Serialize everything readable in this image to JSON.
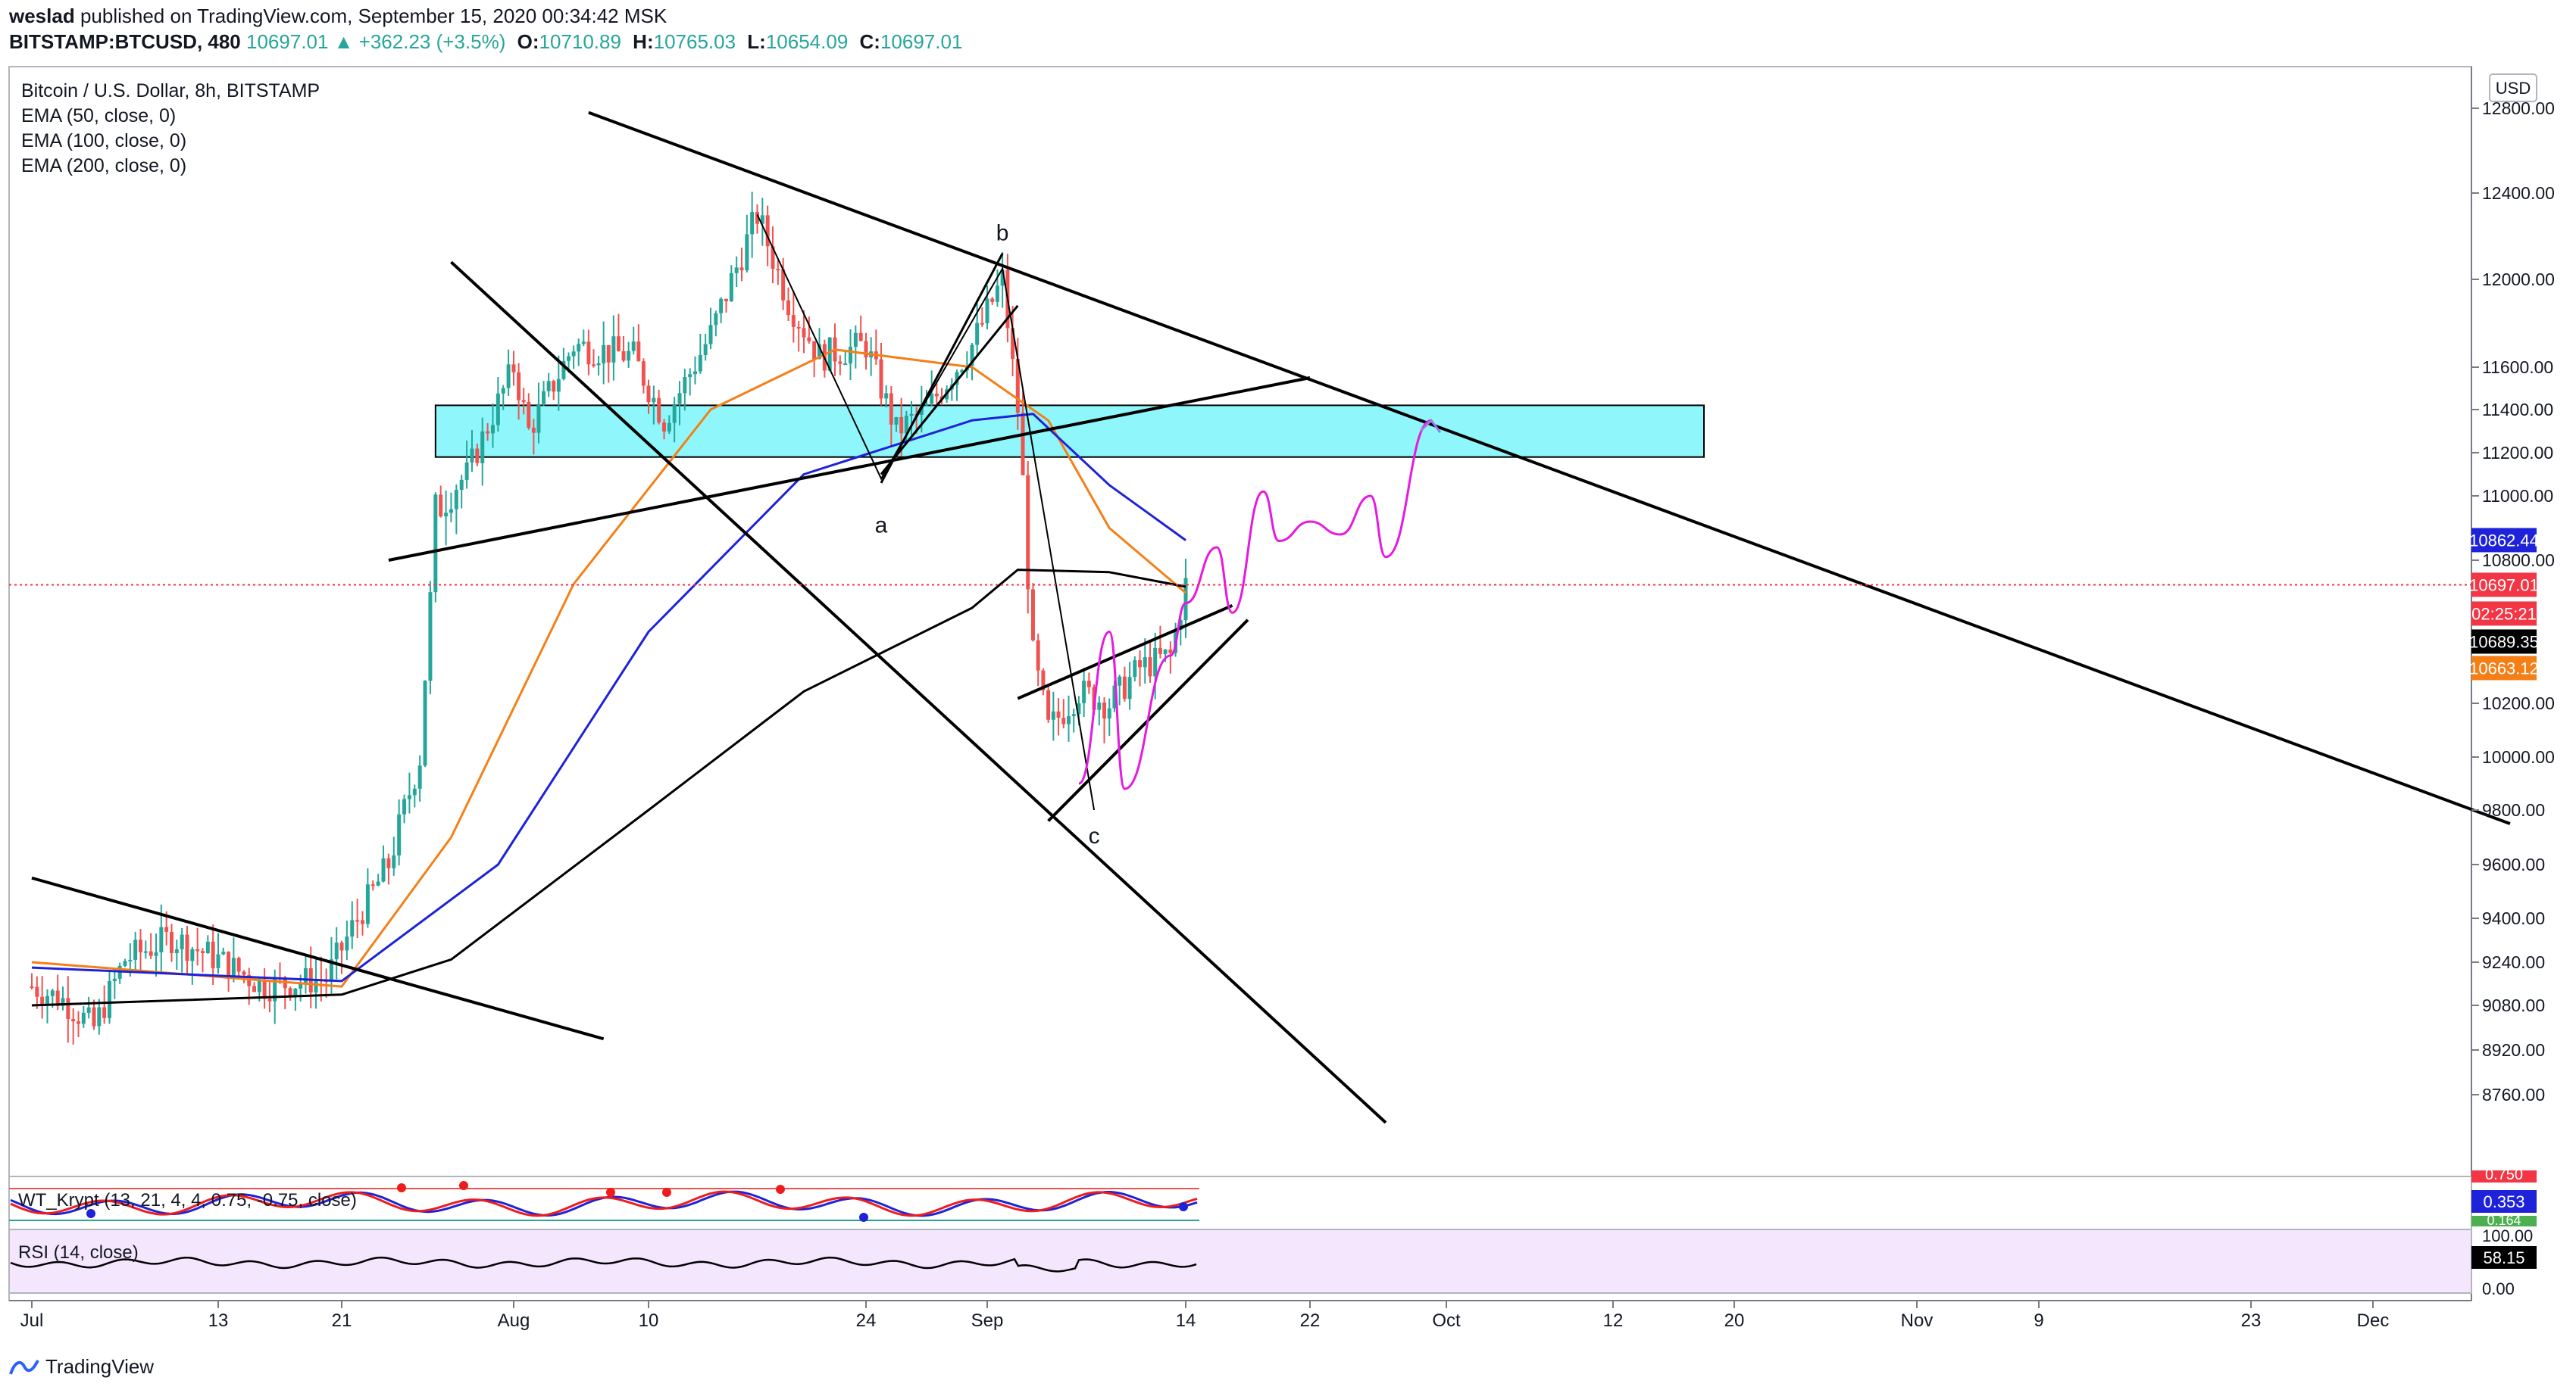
{
  "header": {
    "publisher": "weslad",
    "published_text": "published on TradingView.com, September 15, 2020 00:34:42 MSK",
    "symbol": "BITSTAMP:BTCUSD, 480",
    "last": "10697.01",
    "change": "▲ +362.23 (+3.5%)",
    "open_label": "O:",
    "open": "10710.89",
    "high_label": "H:",
    "high": "10765.03",
    "low_label": "L:",
    "low": "10654.09",
    "close_label": "C:",
    "close": "10697.01"
  },
  "legend": {
    "title": "Bitcoin / U.S. Dollar, 8h, BITSTAMP",
    "ema50": "EMA (50, close, 0)",
    "ema100": "EMA (100, close, 0)",
    "ema200": "EMA (200, close, 0)"
  },
  "currency_badge": "USD",
  "annotations": {
    "a": "a",
    "b": "b",
    "c": "c"
  },
  "price_labels": {
    "ema100": "10862.44",
    "last": "10697.01",
    "countdown": "02:25:21",
    "ema200": "10689.35",
    "ema50": "10663.12"
  },
  "indicators": {
    "wt_title": "WT_Krypt (13, 21, 4, 4, 0.75, -0.75, close)",
    "wt_value": "0.353",
    "wt_top_cut": "0.750",
    "wt_bottom_cut": "0.164",
    "rsi_title": "RSI (14, close)",
    "rsi_value": "58.15",
    "rsi_top": "100.00",
    "rsi_bottom": "0.00"
  },
  "colors": {
    "up": "#26a69a",
    "down": "#ef5350",
    "ema50": "#f57f17",
    "ema100": "#1e22d8",
    "ema200": "#000000",
    "zone": "#8ff7fb",
    "projection": "#e619e0",
    "projection_arrow": "#9b7be8",
    "last_price_line": "#f23645"
  },
  "footer": {
    "brand": "TradingView"
  },
  "chart_data": {
    "type": "line",
    "title": "Bitcoin / U.S. Dollar, 8h, BITSTAMP",
    "ylim": [
      8600,
      12850
    ],
    "y_ticks": [
      "12800.00",
      "12400.00",
      "12000.00",
      "11600.00",
      "11400.00",
      "11200.00",
      "11000.00",
      "10800.00",
      "10200.00",
      "10000.00",
      "9800.00",
      "9600.00",
      "9400.00",
      "9240.00",
      "9080.00",
      "8920.00",
      "8760.00"
    ],
    "x_ticks": [
      "Jul",
      "13",
      "21",
      "Aug",
      "10",
      "24",
      "Sep",
      "14",
      "22",
      "Oct",
      "12",
      "20",
      "Nov",
      "9",
      "23",
      "Dec"
    ],
    "price_path": [
      {
        "date": "Jul 1",
        "price": 9150
      },
      {
        "date": "Jul 3",
        "price": 9100
      },
      {
        "date": "Jul 5",
        "price": 9000
      },
      {
        "date": "Jul 7",
        "price": 9250
      },
      {
        "date": "Jul 10",
        "price": 9330
      },
      {
        "date": "Jul 13",
        "price": 9250
      },
      {
        "date": "Jul 16",
        "price": 9150
      },
      {
        "date": "Jul 20",
        "price": 9180
      },
      {
        "date": "Jul 22",
        "price": 9400
      },
      {
        "date": "Jul 24",
        "price": 9600
      },
      {
        "date": "Jul 26",
        "price": 10000
      },
      {
        "date": "Jul 27",
        "price": 10950
      },
      {
        "date": "Jul 29",
        "price": 11100
      },
      {
        "date": "Aug 1",
        "price": 11600
      },
      {
        "date": "Aug 2",
        "price": 11300
      },
      {
        "date": "Aug 5",
        "price": 11700
      },
      {
        "date": "Aug 9",
        "price": 11650
      },
      {
        "date": "Aug 11",
        "price": 11350
      },
      {
        "date": "Aug 14",
        "price": 11750
      },
      {
        "date": "Aug 17",
        "price": 12300
      },
      {
        "date": "Aug 19",
        "price": 11900
      },
      {
        "date": "Aug 21",
        "price": 11650
      },
      {
        "date": "Aug 24",
        "price": 11700
      },
      {
        "date": "Aug 26",
        "price": 11300
      },
      {
        "date": "Aug 28",
        "price": 11400
      },
      {
        "date": "Aug 31",
        "price": 11700
      },
      {
        "date": "Sep 2",
        "price": 12000
      },
      {
        "date": "Sep 3",
        "price": 11400
      },
      {
        "date": "Sep 4",
        "price": 10400
      },
      {
        "date": "Sep 5",
        "price": 10100
      },
      {
        "date": "Sep 7",
        "price": 10250
      },
      {
        "date": "Sep 9",
        "price": 10200
      },
      {
        "date": "Sep 11",
        "price": 10350
      },
      {
        "date": "Sep 13",
        "price": 10400
      },
      {
        "date": "Sep 14",
        "price": 10697
      }
    ],
    "series": [
      {
        "name": "EMA (50, close, 0)",
        "values": [
          {
            "date": "Jul 1",
            "y": 9240
          },
          {
            "date": "Jul 21",
            "y": 9150
          },
          {
            "date": "Jul 28",
            "y": 9700
          },
          {
            "date": "Aug 5",
            "y": 10700
          },
          {
            "date": "Aug 14",
            "y": 11400
          },
          {
            "date": "Aug 22",
            "y": 11680
          },
          {
            "date": "Aug 31",
            "y": 11600
          },
          {
            "date": "Sep 5",
            "y": 11350
          },
          {
            "date": "Sep 9",
            "y": 10900
          },
          {
            "date": "Sep 14",
            "y": 10663
          }
        ]
      },
      {
        "name": "EMA (100, close, 0)",
        "values": [
          {
            "date": "Jul 1",
            "y": 9220
          },
          {
            "date": "Jul 21",
            "y": 9170
          },
          {
            "date": "Jul 31",
            "y": 9600
          },
          {
            "date": "Aug 10",
            "y": 10500
          },
          {
            "date": "Aug 20",
            "y": 11100
          },
          {
            "date": "Aug 31",
            "y": 11350
          },
          {
            "date": "Sep 4",
            "y": 11380
          },
          {
            "date": "Sep 9",
            "y": 11050
          },
          {
            "date": "Sep 14",
            "y": 10862
          }
        ]
      },
      {
        "name": "EMA (200, close, 0)",
        "values": [
          {
            "date": "Jul 1",
            "y": 9080
          },
          {
            "date": "Jul 21",
            "y": 9120
          },
          {
            "date": "Jul 28",
            "y": 9250
          },
          {
            "date": "Aug 10",
            "y": 9800
          },
          {
            "date": "Aug 20",
            "y": 10250
          },
          {
            "date": "Aug 31",
            "y": 10600
          },
          {
            "date": "Sep 3",
            "y": 10760
          },
          {
            "date": "Sep 9",
            "y": 10750
          },
          {
            "date": "Sep 14",
            "y": 10689
          }
        ]
      }
    ],
    "zone": {
      "from": "Jul 27",
      "to": "Oct 18",
      "low": 11180,
      "high": 11420
    },
    "trendlines": [
      {
        "from": {
          "date": "Jul 1",
          "y": 9550
        },
        "to": {
          "date": "Aug 7",
          "y": 8960
        }
      },
      {
        "from": {
          "date": "Jul 24",
          "y": 10800
        },
        "to": {
          "date": "Sep 22",
          "y": 11550
        }
      },
      {
        "from": {
          "date": "Jul 28",
          "y": 12080
        },
        "to": {
          "date": "Sep 27",
          "y": 8660
        }
      },
      {
        "from": {
          "date": "Aug 6",
          "y": 12780
        },
        "to": {
          "date": "Dec 10",
          "y": 9750
        }
      },
      {
        "from": {
          "date": "Sep 3",
          "y": 10220
        },
        "to": {
          "date": "Sep 17",
          "y": 10610
        }
      },
      {
        "from": {
          "date": "Sep 5",
          "y": 9760
        },
        "to": {
          "date": "Sep 18",
          "y": 10550
        }
      }
    ],
    "projection": [
      {
        "date": "Sep 16",
        "y": 10840
      },
      {
        "date": "Sep 17",
        "y": 10580
      },
      {
        "date": "Sep 19",
        "y": 11020
      },
      {
        "date": "Sep 20",
        "y": 10860
      },
      {
        "date": "Sep 22",
        "y": 10920
      },
      {
        "date": "Sep 24",
        "y": 10880
      },
      {
        "date": "Sep 26",
        "y": 11000
      },
      {
        "date": "Sep 27",
        "y": 10810
      },
      {
        "date": "Sep 30",
        "y": 11350
      }
    ],
    "waves": {
      "a": "Aug 25",
      "b": "Sep 2",
      "c": "Sep 8"
    },
    "indicators": [
      {
        "name": "WT_Krypt (13, 21, 4, 4, 0.75, -0.75, close)",
        "last": 0.353
      },
      {
        "name": "RSI (14, close)",
        "last": 58.15,
        "ylim": [
          0,
          100
        ]
      }
    ]
  }
}
